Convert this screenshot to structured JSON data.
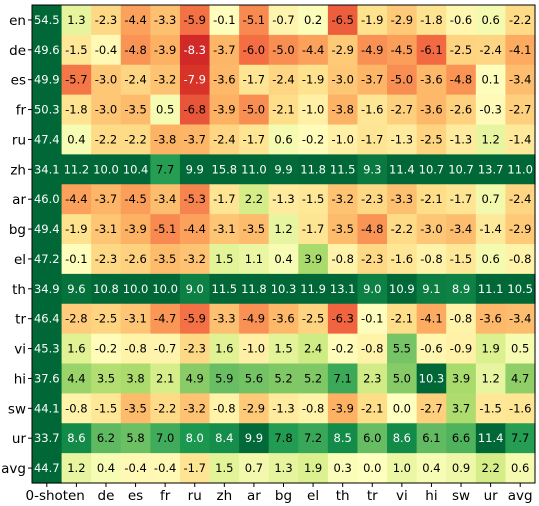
{
  "chart_data": {
    "type": "heatmap",
    "title": "",
    "xlabel": "",
    "ylabel": "",
    "colormap": "RdYlGn",
    "x_categories": [
      "0-shot",
      "en",
      "de",
      "es",
      "fr",
      "ru",
      "zh",
      "ar",
      "bg",
      "el",
      "th",
      "tr",
      "vi",
      "hi",
      "sw",
      "ur",
      "avg"
    ],
    "y_categories": [
      "en",
      "de",
      "es",
      "fr",
      "ru",
      "zh",
      "ar",
      "bg",
      "el",
      "th",
      "tr",
      "vi",
      "hi",
      "sw",
      "ur",
      "avg"
    ],
    "values": [
      [
        54.5,
        1.3,
        -2.3,
        -4.4,
        -3.3,
        -5.9,
        -0.1,
        -5.1,
        -0.7,
        0.2,
        -6.5,
        -1.9,
        -2.9,
        -1.8,
        -0.6,
        0.6,
        -2.2
      ],
      [
        49.6,
        -1.5,
        -0.4,
        -4.8,
        -3.9,
        -8.3,
        -3.7,
        -6.0,
        -5.0,
        -4.4,
        -2.9,
        -4.9,
        -4.5,
        -6.1,
        -2.5,
        -2.4,
        -4.1
      ],
      [
        49.9,
        -5.7,
        -3.0,
        -2.4,
        -3.2,
        -7.9,
        -3.6,
        -1.7,
        -2.4,
        -1.9,
        -3.0,
        -3.7,
        -5.0,
        -3.6,
        -4.8,
        0.1,
        -3.4
      ],
      [
        50.3,
        -1.8,
        -3.0,
        -3.5,
        0.5,
        -6.8,
        -3.9,
        -5.0,
        -2.1,
        -1.0,
        -3.8,
        -1.6,
        -2.7,
        -3.6,
        -2.6,
        -0.3,
        -2.7
      ],
      [
        47.4,
        0.4,
        -2.2,
        -2.2,
        -3.8,
        -3.7,
        -2.4,
        -1.7,
        0.6,
        -0.2,
        -1.0,
        -1.7,
        -1.3,
        -2.5,
        -1.3,
        1.2,
        -1.4
      ],
      [
        34.1,
        11.2,
        10.0,
        10.4,
        7.7,
        9.9,
        15.8,
        11.0,
        9.9,
        11.8,
        11.5,
        9.3,
        11.4,
        10.7,
        10.7,
        13.7,
        11.0
      ],
      [
        46.0,
        -4.4,
        -3.7,
        -4.5,
        -3.4,
        -5.3,
        -1.7,
        2.2,
        -1.3,
        -1.5,
        -3.2,
        -2.3,
        -3.3,
        -2.1,
        -1.7,
        0.7,
        -2.4
      ],
      [
        49.4,
        -1.9,
        -3.1,
        -3.9,
        -5.1,
        -4.4,
        -3.1,
        -3.5,
        1.2,
        -1.7,
        -3.5,
        -4.8,
        -2.2,
        -3.0,
        -3.4,
        -1.4,
        -2.9
      ],
      [
        47.2,
        -0.1,
        -2.3,
        -2.6,
        -3.5,
        -3.2,
        1.5,
        1.1,
        0.4,
        3.9,
        -0.8,
        -2.3,
        -1.6,
        -0.8,
        -1.5,
        0.6,
        -0.8
      ],
      [
        34.9,
        9.6,
        10.8,
        10.0,
        10.0,
        9.0,
        11.5,
        11.8,
        10.3,
        11.9,
        13.1,
        9.0,
        10.9,
        9.1,
        8.9,
        11.1,
        10.5
      ],
      [
        46.4,
        -2.8,
        -2.5,
        -3.1,
        -4.7,
        -5.9,
        -3.3,
        -4.9,
        -3.6,
        -2.5,
        -6.3,
        -0.1,
        -2.1,
        -4.1,
        -0.8,
        -3.6,
        -3.4
      ],
      [
        45.3,
        1.6,
        -0.2,
        -0.8,
        -0.7,
        -2.3,
        1.6,
        -1.0,
        1.5,
        2.4,
        -0.2,
        -0.8,
        5.5,
        -0.6,
        -0.9,
        1.9,
        0.5
      ],
      [
        37.6,
        4.4,
        3.5,
        3.8,
        2.1,
        4.9,
        5.9,
        5.6,
        5.2,
        5.2,
        7.1,
        2.3,
        5.0,
        10.3,
        3.9,
        1.2,
        4.7
      ],
      [
        44.1,
        -0.8,
        -1.5,
        -3.5,
        -2.2,
        -3.2,
        -0.8,
        -2.9,
        -1.3,
        -0.8,
        -3.9,
        -2.1,
        -0.0,
        -2.7,
        3.7,
        -1.5,
        -1.6
      ],
      [
        33.7,
        8.6,
        6.2,
        5.8,
        7.0,
        8.0,
        8.4,
        9.9,
        7.8,
        7.2,
        8.5,
        6.0,
        8.6,
        6.1,
        6.6,
        11.4,
        7.7
      ],
      [
        44.7,
        1.2,
        0.4,
        -0.4,
        -0.4,
        -1.7,
        1.5,
        0.7,
        1.3,
        1.9,
        0.3,
        0.0,
        1.0,
        0.4,
        0.9,
        2.2,
        0.6
      ]
    ],
    "color_range": [
      -10,
      10
    ]
  }
}
